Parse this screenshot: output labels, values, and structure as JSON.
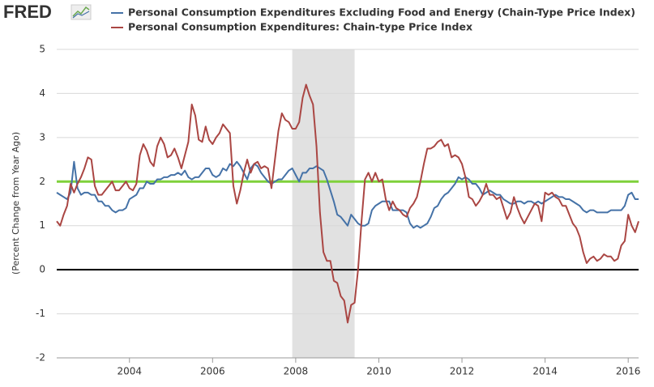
{
  "logo": "FRED",
  "chart_data": {
    "type": "line",
    "y_label": "(Percent Change from Year Ago)",
    "x": [
      "2002-04",
      "2002-05",
      "2002-06",
      "2002-07",
      "2002-08",
      "2002-09",
      "2002-10",
      "2002-11",
      "2002-12",
      "2003-01",
      "2003-02",
      "2003-03",
      "2003-04",
      "2003-05",
      "2003-06",
      "2003-07",
      "2003-08",
      "2003-09",
      "2003-10",
      "2003-11",
      "2003-12",
      "2004-01",
      "2004-02",
      "2004-03",
      "2004-04",
      "2004-05",
      "2004-06",
      "2004-07",
      "2004-08",
      "2004-09",
      "2004-10",
      "2004-11",
      "2004-12",
      "2005-01",
      "2005-02",
      "2005-03",
      "2005-04",
      "2005-05",
      "2005-06",
      "2005-07",
      "2005-08",
      "2005-09",
      "2005-10",
      "2005-11",
      "2005-12",
      "2006-01",
      "2006-02",
      "2006-03",
      "2006-04",
      "2006-05",
      "2006-06",
      "2006-07",
      "2006-08",
      "2006-09",
      "2006-10",
      "2006-11",
      "2006-12",
      "2007-01",
      "2007-02",
      "2007-03",
      "2007-04",
      "2007-05",
      "2007-06",
      "2007-07",
      "2007-08",
      "2007-09",
      "2007-10",
      "2007-11",
      "2007-12",
      "2008-01",
      "2008-02",
      "2008-03",
      "2008-04",
      "2008-05",
      "2008-06",
      "2008-07",
      "2008-08",
      "2008-09",
      "2008-10",
      "2008-11",
      "2008-12",
      "2009-01",
      "2009-02",
      "2009-03",
      "2009-04",
      "2009-05",
      "2009-06",
      "2009-07",
      "2009-08",
      "2009-09",
      "2009-10",
      "2009-11",
      "2009-12",
      "2010-01",
      "2010-02",
      "2010-03",
      "2010-04",
      "2010-05",
      "2010-06",
      "2010-07",
      "2010-08",
      "2010-09",
      "2010-10",
      "2010-11",
      "2010-12",
      "2011-01",
      "2011-02",
      "2011-03",
      "2011-04",
      "2011-05",
      "2011-06",
      "2011-07",
      "2011-08",
      "2011-09",
      "2011-10",
      "2011-11",
      "2011-12",
      "2012-01",
      "2012-02",
      "2012-03",
      "2012-04",
      "2012-05",
      "2012-06",
      "2012-07",
      "2012-08",
      "2012-09",
      "2012-10",
      "2012-11",
      "2012-12",
      "2013-01",
      "2013-02",
      "2013-03",
      "2013-04",
      "2013-05",
      "2013-06",
      "2013-07",
      "2013-08",
      "2013-09",
      "2013-10",
      "2013-11",
      "2013-12",
      "2014-01",
      "2014-02",
      "2014-03",
      "2014-04",
      "2014-05",
      "2014-06",
      "2014-07",
      "2014-08",
      "2014-09",
      "2014-10",
      "2014-11",
      "2014-12",
      "2015-01",
      "2015-02",
      "2015-03",
      "2015-04",
      "2015-05",
      "2015-06",
      "2015-07",
      "2015-08",
      "2015-09",
      "2015-10",
      "2015-11",
      "2015-12",
      "2016-01",
      "2016-02",
      "2016-03",
      "2016-04"
    ],
    "series": [
      {
        "name": "Personal Consumption Expenditures Excluding Food and Energy (Chain-Type Price Index)",
        "color": "#4572a7",
        "values": [
          1.75,
          1.7,
          1.65,
          1.6,
          1.75,
          2.45,
          1.85,
          1.7,
          1.75,
          1.75,
          1.7,
          1.7,
          1.55,
          1.55,
          1.45,
          1.45,
          1.35,
          1.3,
          1.35,
          1.35,
          1.4,
          1.6,
          1.65,
          1.7,
          1.85,
          1.85,
          2.0,
          1.95,
          1.95,
          2.05,
          2.05,
          2.1,
          2.1,
          2.15,
          2.15,
          2.2,
          2.15,
          2.25,
          2.1,
          2.05,
          2.1,
          2.1,
          2.2,
          2.3,
          2.3,
          2.15,
          2.1,
          2.15,
          2.3,
          2.25,
          2.4,
          2.35,
          2.45,
          2.35,
          2.2,
          2.05,
          2.3,
          2.4,
          2.35,
          2.2,
          2.1,
          2.0,
          1.95,
          2.0,
          2.05,
          2.05,
          2.15,
          2.25,
          2.3,
          2.15,
          2.0,
          2.2,
          2.2,
          2.3,
          2.3,
          2.35,
          2.3,
          2.25,
          2.05,
          1.8,
          1.55,
          1.25,
          1.2,
          1.1,
          1.0,
          1.25,
          1.15,
          1.05,
          1.0,
          1.0,
          1.05,
          1.35,
          1.45,
          1.5,
          1.55,
          1.55,
          1.55,
          1.35,
          1.35,
          1.35,
          1.35,
          1.3,
          1.05,
          0.95,
          1.0,
          0.95,
          1.0,
          1.05,
          1.2,
          1.4,
          1.45,
          1.6,
          1.7,
          1.75,
          1.85,
          1.95,
          2.1,
          2.05,
          2.1,
          2.05,
          1.95,
          1.95,
          1.85,
          1.7,
          1.75,
          1.8,
          1.75,
          1.7,
          1.7,
          1.6,
          1.55,
          1.5,
          1.5,
          1.55,
          1.55,
          1.5,
          1.55,
          1.55,
          1.5,
          1.55,
          1.5,
          1.55,
          1.6,
          1.65,
          1.7,
          1.65,
          1.65,
          1.6,
          1.6,
          1.55,
          1.5,
          1.45,
          1.35,
          1.3,
          1.35,
          1.35,
          1.3,
          1.3,
          1.3,
          1.3,
          1.35,
          1.35,
          1.35,
          1.35,
          1.45,
          1.7,
          1.75,
          1.6,
          1.6
        ]
      },
      {
        "name": "Personal Consumption Expenditures: Chain-type Price Index",
        "color": "#aa4643",
        "values": [
          1.1,
          1.0,
          1.25,
          1.45,
          1.95,
          1.75,
          1.95,
          2.1,
          2.3,
          2.55,
          2.5,
          1.9,
          1.7,
          1.7,
          1.8,
          1.9,
          2.0,
          1.8,
          1.8,
          1.9,
          2.0,
          1.85,
          1.8,
          1.95,
          2.6,
          2.85,
          2.7,
          2.45,
          2.35,
          2.8,
          3.0,
          2.85,
          2.55,
          2.6,
          2.75,
          2.55,
          2.3,
          2.6,
          2.9,
          3.75,
          3.5,
          2.95,
          2.9,
          3.25,
          2.95,
          2.85,
          3.0,
          3.1,
          3.3,
          3.2,
          3.1,
          1.9,
          1.5,
          1.8,
          2.2,
          2.5,
          2.2,
          2.4,
          2.45,
          2.3,
          2.35,
          2.3,
          1.85,
          2.5,
          3.15,
          3.55,
          3.4,
          3.35,
          3.2,
          3.2,
          3.35,
          3.9,
          4.2,
          3.95,
          3.75,
          2.8,
          1.3,
          0.4,
          0.2,
          0.2,
          -0.25,
          -0.3,
          -0.6,
          -0.7,
          -1.2,
          -0.8,
          -0.75,
          0.0,
          1.1,
          2.05,
          2.2,
          2.0,
          2.2,
          2.0,
          2.05,
          1.6,
          1.35,
          1.55,
          1.4,
          1.35,
          1.25,
          1.2,
          1.4,
          1.5,
          1.65,
          2.0,
          2.4,
          2.75,
          2.75,
          2.8,
          2.9,
          2.95,
          2.8,
          2.85,
          2.55,
          2.6,
          2.55,
          2.4,
          2.1,
          1.65,
          1.6,
          1.45,
          1.55,
          1.7,
          1.95,
          1.7,
          1.7,
          1.6,
          1.65,
          1.4,
          1.15,
          1.3,
          1.65,
          1.4,
          1.2,
          1.05,
          1.2,
          1.35,
          1.5,
          1.45,
          1.1,
          1.75,
          1.7,
          1.75,
          1.65,
          1.6,
          1.45,
          1.45,
          1.25,
          1.05,
          0.95,
          0.75,
          0.4,
          0.15,
          0.25,
          0.3,
          0.2,
          0.25,
          0.35,
          0.3,
          0.3,
          0.2,
          0.25,
          0.55,
          0.65,
          1.25,
          1.0,
          0.85,
          1.1
        ]
      }
    ],
    "xlim": [
      "2002-04",
      "2016-04"
    ],
    "xticks": [
      2004,
      2006,
      2008,
      2010,
      2012,
      2014,
      2016
    ],
    "ylim": [
      -2,
      5
    ],
    "yticks": [
      -2,
      -1,
      0,
      1,
      2,
      3,
      4,
      5
    ],
    "grid": true,
    "reference_lines": [
      {
        "value": 2,
        "color": "#7fd13b"
      },
      {
        "value": 0,
        "color": "#000000"
      }
    ],
    "recessions": [
      [
        "2007-12",
        "2009-06"
      ]
    ]
  }
}
